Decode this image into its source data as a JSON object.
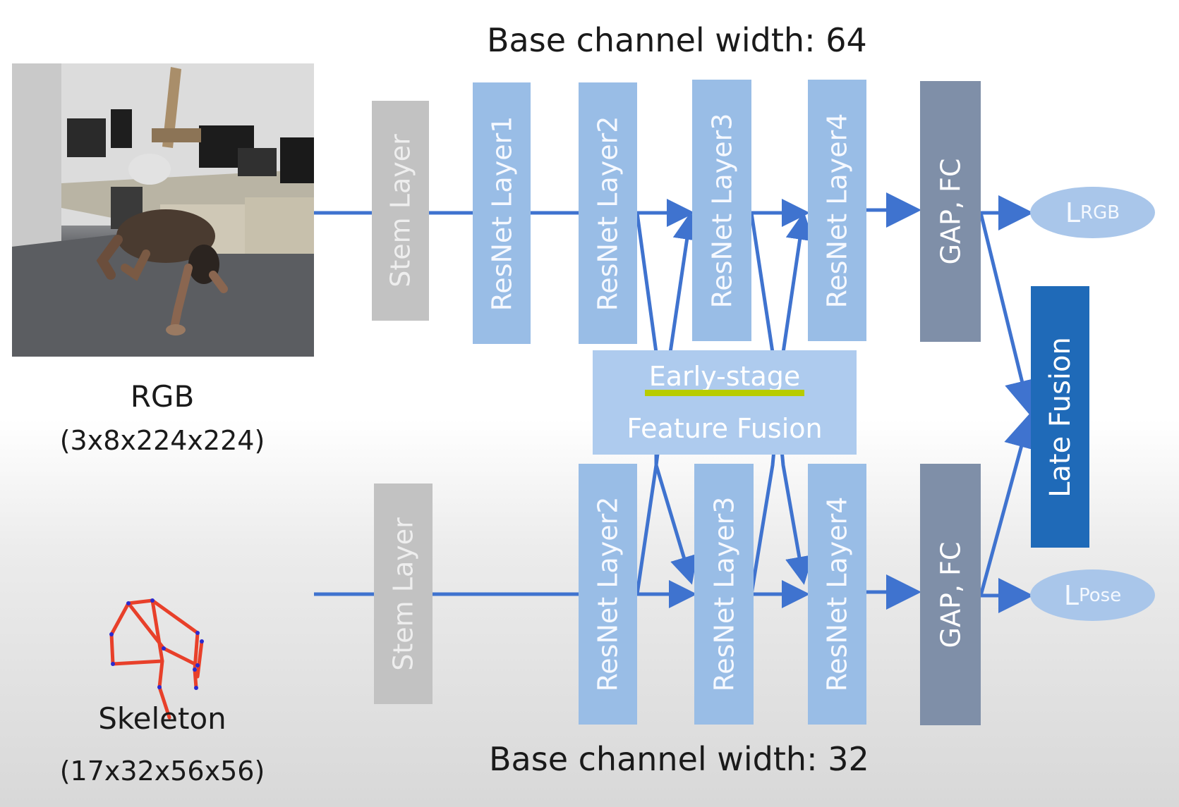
{
  "top_title": "Base channel width: 64",
  "bottom_title": "Base channel width: 32",
  "rgb": {
    "label": "RGB",
    "shape": "(3x8x224x224)"
  },
  "skeleton": {
    "label": "Skeleton",
    "shape": "(17x32x56x56)"
  },
  "rgb_stream": {
    "stem": "Stem Layer",
    "layer1": "ResNet Layer1",
    "layer2": "ResNet Layer2",
    "layer3": "ResNet Layer3",
    "layer4": "ResNet Layer4",
    "head": "GAP, FC",
    "loss_main": "L",
    "loss_sub": "RGB"
  },
  "pose_stream": {
    "stem": "Stem Layer",
    "layer2": "ResNet Layer2",
    "layer3": "ResNet Layer3",
    "layer4": "ResNet Layer4",
    "head": "GAP, FC",
    "loss_main": "L",
    "loss_sub": "Pose"
  },
  "fusion": {
    "line1": "Early-stage",
    "line2": "Feature Fusion"
  },
  "late_fusion": "Late Fusion",
  "colors": {
    "arrow": "#3f73cf",
    "resnet": "#99bde6",
    "stem": "#c2c2c2",
    "head": "#7f8fa8",
    "late_fusion": "#1f6ab8",
    "skeleton_limb": "#e8402a",
    "skeleton_joint": "#2a2ad0"
  }
}
